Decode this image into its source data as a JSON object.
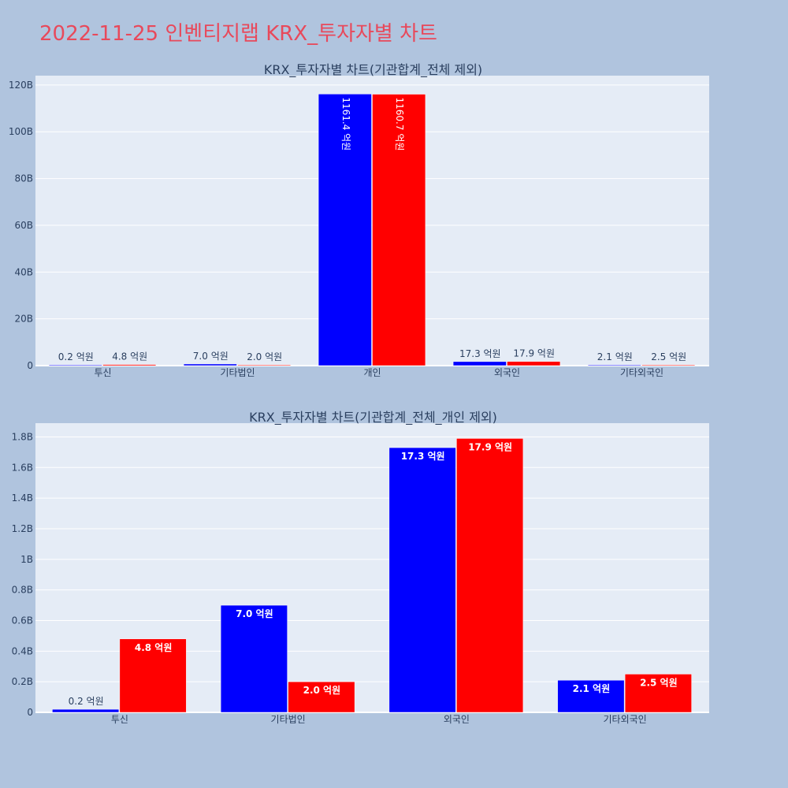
{
  "page": {
    "title": "2022-11-25 인벤티지랩 KRX_투자자별 차트"
  },
  "colors": {
    "buy": "#0000ff",
    "sell": "#ff0000",
    "plot_bg": "#e5ecf6",
    "page_bg": "#b0c4de",
    "title": "#e8495b"
  },
  "chart_data": [
    {
      "type": "bar",
      "title": "KRX_투자자별 차트(기관합계_전체 제외)",
      "categories": [
        "투신",
        "기타법인",
        "개인",
        "외국인",
        "기타외국인"
      ],
      "series": [
        {
          "values": [
            20000000,
            700000000,
            116140000000,
            1730000000,
            210000000
          ],
          "labels": [
            "0.2 억원",
            "7.0 억원",
            "1161.4 억원",
            "17.3 억원",
            "2.1 억원"
          ]
        },
        {
          "values": [
            480000000,
            200000000,
            116070000000,
            1790000000,
            250000000
          ],
          "labels": [
            "4.8 억원",
            "2.0 억원",
            "1160.7 억원",
            "17.9 억원",
            "2.5 억원"
          ]
        }
      ],
      "ylim": [
        0,
        124000000000
      ],
      "yticks": [
        0,
        20000000000,
        40000000000,
        60000000000,
        80000000000,
        100000000000,
        120000000000
      ],
      "ytick_labels": [
        "0",
        "20B",
        "40B",
        "60B",
        "80B",
        "100B",
        "120B"
      ],
      "grid": true
    },
    {
      "type": "bar",
      "title": "KRX_투자자별 차트(기관합계_전체_개인 제외)",
      "categories": [
        "투신",
        "기타법인",
        "외국인",
        "기타외국인"
      ],
      "series": [
        {
          "values": [
            20000000,
            700000000,
            1730000000,
            210000000
          ],
          "labels": [
            "0.2 억원",
            "7.0 억원",
            "17.3 억원",
            "2.1 억원"
          ]
        },
        {
          "values": [
            480000000,
            200000000,
            1790000000,
            250000000
          ],
          "labels": [
            "4.8 억원",
            "2.0 억원",
            "17.9 억원",
            "2.5 억원"
          ]
        }
      ],
      "ylim": [
        0,
        1890000000
      ],
      "yticks": [
        0,
        200000000,
        400000000,
        600000000,
        800000000,
        1000000000,
        1200000000,
        1400000000,
        1600000000,
        1800000000
      ],
      "ytick_labels": [
        "0",
        "0.2B",
        "0.4B",
        "0.6B",
        "0.8B",
        "1B",
        "1.2B",
        "1.4B",
        "1.6B",
        "1.8B"
      ],
      "grid": true
    }
  ]
}
